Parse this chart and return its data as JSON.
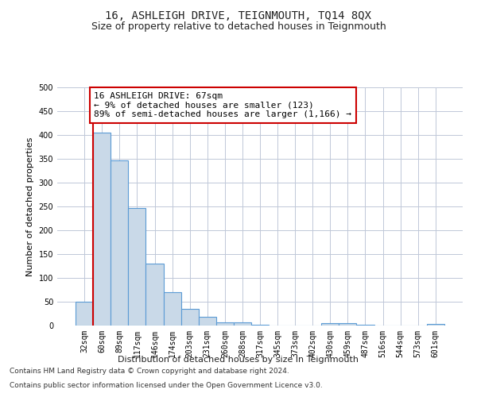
{
  "title": "16, ASHLEIGH DRIVE, TEIGNMOUTH, TQ14 8QX",
  "subtitle": "Size of property relative to detached houses in Teignmouth",
  "xlabel": "Distribution of detached houses by size in Teignmouth",
  "ylabel": "Number of detached properties",
  "categories": [
    "32sqm",
    "60sqm",
    "89sqm",
    "117sqm",
    "146sqm",
    "174sqm",
    "203sqm",
    "231sqm",
    "260sqm",
    "288sqm",
    "317sqm",
    "345sqm",
    "373sqm",
    "402sqm",
    "430sqm",
    "459sqm",
    "487sqm",
    "516sqm",
    "544sqm",
    "573sqm",
    "601sqm"
  ],
  "values": [
    50,
    405,
    347,
    246,
    130,
    70,
    35,
    19,
    7,
    7,
    1,
    0,
    0,
    0,
    5,
    5,
    2,
    0,
    0,
    0,
    4
  ],
  "bar_color": "#c9d9e8",
  "bar_edge_color": "#5b9bd5",
  "bar_edge_width": 0.8,
  "vline_x_index": 1,
  "vline_color": "#cc0000",
  "vline_linewidth": 1.5,
  "annotation_text": "16 ASHLEIGH DRIVE: 67sqm\n← 9% of detached houses are smaller (123)\n89% of semi-detached houses are larger (1,166) →",
  "annotation_box_color": "#ffffff",
  "annotation_box_edge_color": "#cc0000",
  "ylim": [
    0,
    500
  ],
  "yticks": [
    0,
    50,
    100,
    150,
    200,
    250,
    300,
    350,
    400,
    450,
    500
  ],
  "footer_line1": "Contains HM Land Registry data © Crown copyright and database right 2024.",
  "footer_line2": "Contains public sector information licensed under the Open Government Licence v3.0.",
  "bg_color": "#ffffff",
  "grid_color": "#c0c8d8",
  "title_fontsize": 10,
  "subtitle_fontsize": 9,
  "axis_label_fontsize": 8,
  "tick_fontsize": 7,
  "annotation_fontsize": 8,
  "footer_fontsize": 6.5
}
